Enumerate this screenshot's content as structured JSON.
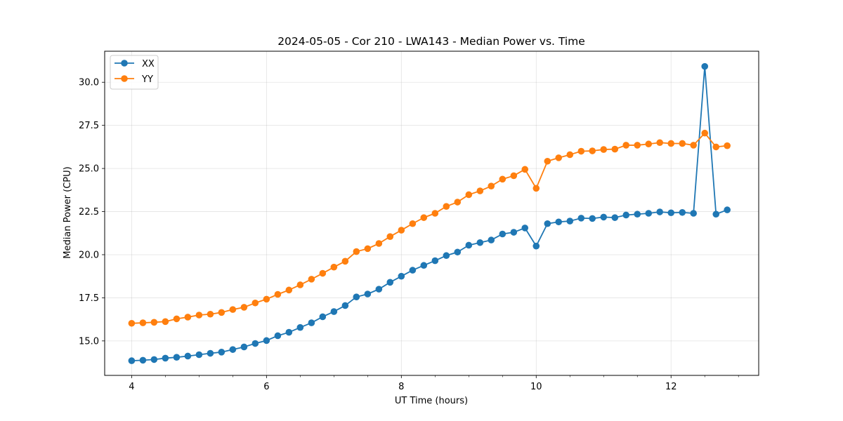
{
  "chart_data": {
    "type": "line",
    "title": "2024-05-05 - Cor 210 - LWA143 - Median Power vs. Time",
    "xlabel": "UT Time (hours)",
    "ylabel": "Median Power (CPU)",
    "xlim": [
      3.6,
      13.3
    ],
    "ylim": [
      13.0,
      31.8
    ],
    "xticks": [
      4,
      6,
      8,
      10,
      12
    ],
    "xtick_labels": [
      "4",
      "6",
      "8",
      "10",
      "12"
    ],
    "xminor_step": 0.5,
    "yticks": [
      15.0,
      17.5,
      20.0,
      22.5,
      25.0,
      27.5,
      30.0
    ],
    "ytick_labels": [
      "15.0",
      "17.5",
      "20.0",
      "22.5",
      "25.0",
      "27.5",
      "30.0"
    ],
    "grid": true,
    "legend_position": "top-left",
    "series": [
      {
        "name": "XX",
        "color": "#1f77b4",
        "x": [
          4.0,
          4.167,
          4.333,
          4.5,
          4.667,
          4.833,
          5.0,
          5.167,
          5.333,
          5.5,
          5.667,
          5.833,
          6.0,
          6.167,
          6.333,
          6.5,
          6.667,
          6.833,
          7.0,
          7.167,
          7.333,
          7.5,
          7.667,
          7.833,
          8.0,
          8.167,
          8.333,
          8.5,
          8.667,
          8.833,
          9.0,
          9.167,
          9.333,
          9.5,
          9.667,
          9.833,
          10.0,
          10.167,
          10.333,
          10.5,
          10.667,
          10.833,
          11.0,
          11.167,
          11.333,
          11.5,
          11.667,
          11.833,
          12.0,
          12.167,
          12.333,
          12.5,
          12.667,
          12.833
        ],
        "y": [
          13.85,
          13.88,
          13.92,
          14.0,
          14.05,
          14.12,
          14.2,
          14.28,
          14.35,
          14.5,
          14.65,
          14.85,
          15.02,
          15.3,
          15.5,
          15.78,
          16.05,
          16.4,
          16.7,
          17.05,
          17.55,
          17.72,
          18.0,
          18.4,
          18.75,
          19.1,
          19.38,
          19.65,
          19.95,
          20.15,
          20.55,
          20.7,
          20.85,
          21.2,
          21.3,
          21.55,
          20.5,
          21.8,
          21.9,
          21.95,
          22.12,
          22.1,
          22.18,
          22.15,
          22.3,
          22.35,
          22.4,
          22.48,
          22.43,
          22.45,
          22.4,
          30.92,
          22.35,
          22.6
        ]
      },
      {
        "name": "YY",
        "color": "#ff7f0e",
        "x": [
          4.0,
          4.167,
          4.333,
          4.5,
          4.667,
          4.833,
          5.0,
          5.167,
          5.333,
          5.5,
          5.667,
          5.833,
          6.0,
          6.167,
          6.333,
          6.5,
          6.667,
          6.833,
          7.0,
          7.167,
          7.333,
          7.5,
          7.667,
          7.833,
          8.0,
          8.167,
          8.333,
          8.5,
          8.667,
          8.833,
          9.0,
          9.167,
          9.333,
          9.5,
          9.667,
          9.833,
          10.0,
          10.167,
          10.333,
          10.5,
          10.667,
          10.833,
          11.0,
          11.167,
          11.333,
          11.5,
          11.667,
          11.833,
          12.0,
          12.167,
          12.333,
          12.5,
          12.667,
          12.833
        ],
        "y": [
          16.02,
          16.05,
          16.08,
          16.12,
          16.28,
          16.38,
          16.5,
          16.55,
          16.65,
          16.82,
          16.95,
          17.2,
          17.42,
          17.7,
          17.95,
          18.25,
          18.58,
          18.92,
          19.28,
          19.62,
          20.18,
          20.35,
          20.65,
          21.05,
          21.42,
          21.8,
          22.15,
          22.4,
          22.8,
          23.05,
          23.48,
          23.7,
          23.98,
          24.38,
          24.58,
          24.95,
          23.85,
          25.42,
          25.62,
          25.8,
          26.0,
          26.02,
          26.1,
          26.12,
          26.35,
          26.35,
          26.42,
          26.5,
          26.45,
          26.45,
          26.35,
          27.05,
          26.25,
          26.32
        ]
      }
    ]
  }
}
